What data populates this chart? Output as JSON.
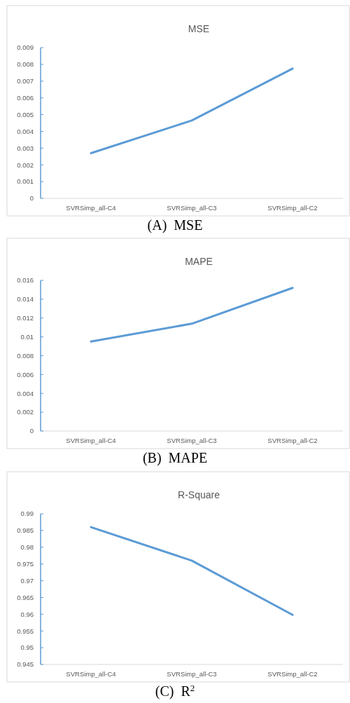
{
  "chart_data": [
    {
      "type": "line",
      "title": "MSE",
      "categories": [
        "SVRSimp_all-C4",
        "SVRSimp_all-C3",
        "SVRSimp_all-C2"
      ],
      "series": [
        {
          "color": "#5b9bd5",
          "values": [
            0.0027,
            0.00465,
            0.00775
          ]
        }
      ],
      "ylim": [
        0,
        0.009
      ],
      "yticks": [
        0,
        0.001,
        0.002,
        0.003,
        0.004,
        0.005,
        0.006,
        0.007,
        0.008,
        0.009
      ],
      "annotations": [
        "(A)  MSE"
      ]
    },
    {
      "type": "line",
      "title": "MAPE",
      "categories": [
        "SVRSimp_all-C4",
        "SVRSimp_all-C3",
        "SVRSimp_all-C2"
      ],
      "series": [
        {
          "color": "#5b9bd5",
          "values": [
            0.0095,
            0.0114,
            0.0152
          ]
        }
      ],
      "ylim": [
        0,
        0.016
      ],
      "yticks": [
        0,
        0.002,
        0.004,
        0.006,
        0.008,
        0.01,
        0.012,
        0.014,
        0.016
      ],
      "annotations": [
        "(B)  MAPE"
      ]
    },
    {
      "type": "line",
      "title": "R-Square",
      "categories": [
        "SVRSimp_all-C4",
        "SVRSimp_all-C3",
        "SVRSimp_all-C2"
      ],
      "series": [
        {
          "color": "#5b9bd5",
          "values": [
            0.986,
            0.976,
            0.9598
          ]
        }
      ],
      "ylim": [
        0.945,
        0.99
      ],
      "yticks": [
        0.945,
        0.95,
        0.955,
        0.96,
        0.965,
        0.97,
        0.975,
        0.98,
        0.985,
        0.99
      ],
      "annotations": [
        "(C)  R$^{2}$"
      ]
    }
  ]
}
